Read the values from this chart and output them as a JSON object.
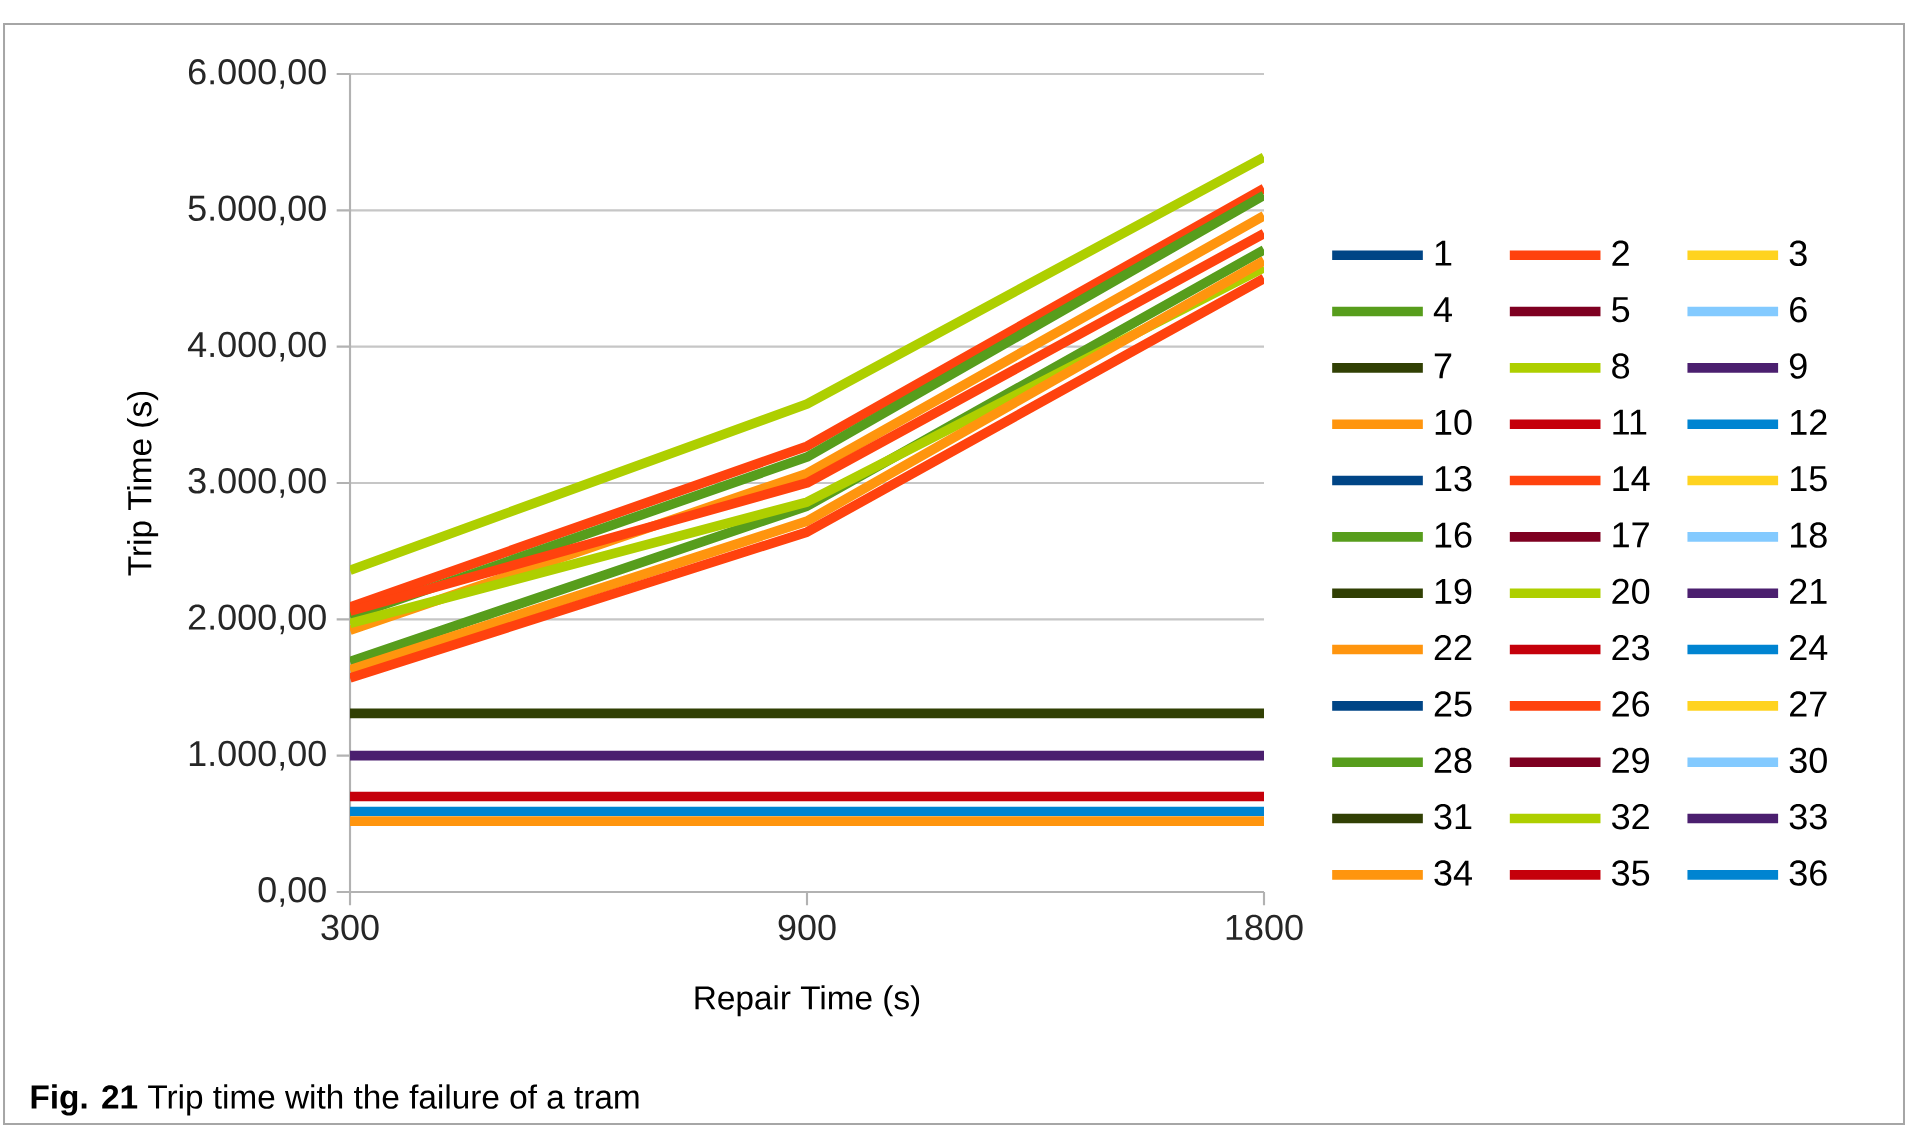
{
  "chart_data": {
    "type": "line",
    "xlabel": "Repair Time (s)",
    "ylabel": "Trip Time (s)",
    "annotations": [
      "**Fig. 21**  Trip time with the failure of a tram"
    ],
    "categories": [
      "300",
      "900",
      "1800"
    ],
    "ylim": [
      0,
      6000
    ],
    "yticks": [
      {
        "value": 0,
        "label": "0,00"
      },
      {
        "value": 1000,
        "label": "1.000,00"
      },
      {
        "value": 2000,
        "label": "2.000,00"
      },
      {
        "value": 3000,
        "label": "3.000,00"
      },
      {
        "value": 4000,
        "label": "4.000,00"
      },
      {
        "value": 5000,
        "label": "5.000,00"
      },
      {
        "value": 6000,
        "label": "6.000,00"
      }
    ],
    "grid": "y",
    "legend": "right",
    "marker": "none",
    "line_style": "solid",
    "series": [
      {
        "name": "1",
        "color": "#004586",
        "values": [
          null,
          null,
          null
        ]
      },
      {
        "name": "2",
        "color": "#ff420e",
        "values": [
          2090,
          3270,
          5160
        ]
      },
      {
        "name": "3",
        "color": "#ffd320",
        "values": [
          null,
          null,
          null
        ]
      },
      {
        "name": "4",
        "color": "#579d1c",
        "values": [
          2020,
          3190,
          5110
        ]
      },
      {
        "name": "5",
        "color": "#7e0021",
        "values": [
          null,
          null,
          null
        ]
      },
      {
        "name": "6",
        "color": "#83caff",
        "values": [
          null,
          null,
          null
        ]
      },
      {
        "name": "7",
        "color": "#314004",
        "values": [
          1310,
          1310,
          1310
        ]
      },
      {
        "name": "8",
        "color": "#aecf00",
        "values": [
          2360,
          3580,
          5390
        ]
      },
      {
        "name": "9",
        "color": "#4b1f6f",
        "values": [
          1000,
          1000,
          1000
        ]
      },
      {
        "name": "10",
        "color": "#ff950e",
        "values": [
          1920,
          3070,
          4960
        ]
      },
      {
        "name": "11",
        "color": "#c5000b",
        "values": [
          700,
          700,
          700
        ]
      },
      {
        "name": "12",
        "color": "#0084d1",
        "values": [
          590,
          590,
          590
        ]
      },
      {
        "name": "13",
        "color": "#004586",
        "values": [
          null,
          null,
          null
        ]
      },
      {
        "name": "14",
        "color": "#ff420e",
        "values": [
          2060,
          3000,
          4830
        ]
      },
      {
        "name": "15",
        "color": "#ffd320",
        "values": [
          null,
          null,
          null
        ]
      },
      {
        "name": "16",
        "color": "#579d1c",
        "values": [
          1690,
          2830,
          4710
        ]
      },
      {
        "name": "17",
        "color": "#7e0021",
        "values": [
          null,
          null,
          null
        ]
      },
      {
        "name": "18",
        "color": "#83caff",
        "values": [
          null,
          null,
          null
        ]
      },
      {
        "name": "19",
        "color": "#314004",
        "values": [
          null,
          null,
          null
        ]
      },
      {
        "name": "20",
        "color": "#aecf00",
        "values": [
          1970,
          2860,
          4580
        ]
      },
      {
        "name": "21",
        "color": "#4b1f6f",
        "values": [
          null,
          null,
          null
        ]
      },
      {
        "name": "22",
        "color": "#ff950e",
        "values": [
          1630,
          2720,
          4630
        ]
      },
      {
        "name": "23",
        "color": "#c5000b",
        "values": [
          null,
          null,
          null
        ]
      },
      {
        "name": "24",
        "color": "#0084d1",
        "values": [
          null,
          null,
          null
        ]
      },
      {
        "name": "25",
        "color": "#004586",
        "values": [
          null,
          null,
          null
        ]
      },
      {
        "name": "26",
        "color": "#ff420e",
        "values": [
          1570,
          2640,
          4500
        ]
      },
      {
        "name": "27",
        "color": "#ffd320",
        "values": [
          null,
          null,
          null
        ]
      },
      {
        "name": "28",
        "color": "#579d1c",
        "values": [
          null,
          null,
          null
        ]
      },
      {
        "name": "29",
        "color": "#7e0021",
        "values": [
          null,
          null,
          null
        ]
      },
      {
        "name": "30",
        "color": "#83caff",
        "values": [
          null,
          null,
          null
        ]
      },
      {
        "name": "31",
        "color": "#314004",
        "values": [
          null,
          null,
          null
        ]
      },
      {
        "name": "32",
        "color": "#aecf00",
        "values": [
          null,
          null,
          null
        ]
      },
      {
        "name": "33",
        "color": "#4b1f6f",
        "values": [
          null,
          null,
          null
        ]
      },
      {
        "name": "34",
        "color": "#ff950e",
        "values": [
          520,
          520,
          520
        ]
      },
      {
        "name": "35",
        "color": "#c5000b",
        "values": [
          null,
          null,
          null
        ]
      },
      {
        "name": "36",
        "color": "#0084d1",
        "values": [
          null,
          null,
          null
        ]
      }
    ]
  }
}
